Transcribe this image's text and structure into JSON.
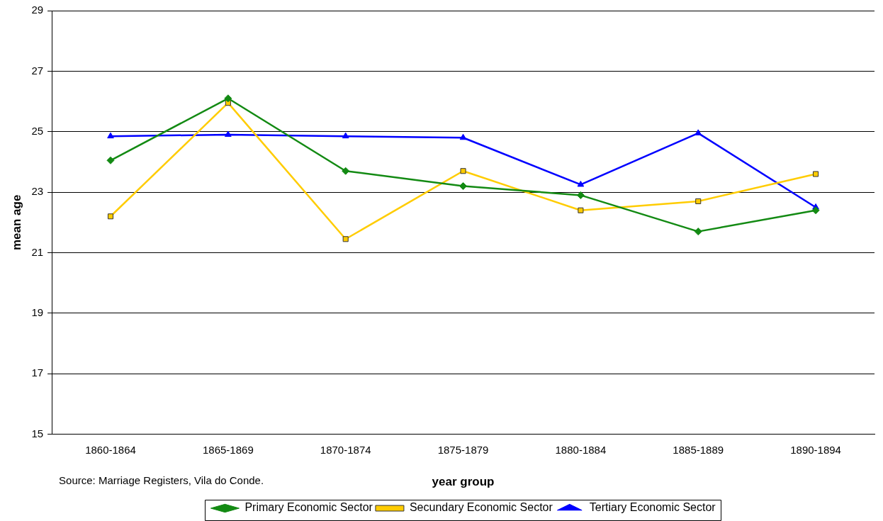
{
  "chart_data": {
    "type": "line",
    "xlabel": "year group",
    "ylabel": "mean age",
    "categories": [
      "1860-1864",
      "1865-1869",
      "1870-1874",
      "1875-1879",
      "1880-1884",
      "1885-1889",
      "1890-1894"
    ],
    "series": [
      {
        "name": "Primary Economic Sector",
        "color": "#138a13",
        "marker": "diamond",
        "values": [
          24.05,
          26.1,
          23.7,
          23.2,
          22.9,
          21.7,
          22.4
        ]
      },
      {
        "name": "Secundary Economic Sector",
        "color": "#ffcc00",
        "marker": "square",
        "values": [
          22.2,
          25.95,
          21.45,
          23.7,
          22.4,
          22.7,
          23.6
        ]
      },
      {
        "name": "Tertiary Economic Sector",
        "color": "#0000ff",
        "marker": "triangle",
        "values": [
          24.85,
          24.9,
          24.85,
          24.8,
          23.25,
          24.95,
          22.5
        ]
      }
    ],
    "ylim": [
      15,
      29
    ],
    "yticks": [
      15,
      17,
      19,
      21,
      23,
      25,
      27,
      29
    ],
    "grid": "y",
    "legend": "bottom",
    "annotations": [
      "Source: Marriage Registers, Vila do Conde."
    ]
  }
}
